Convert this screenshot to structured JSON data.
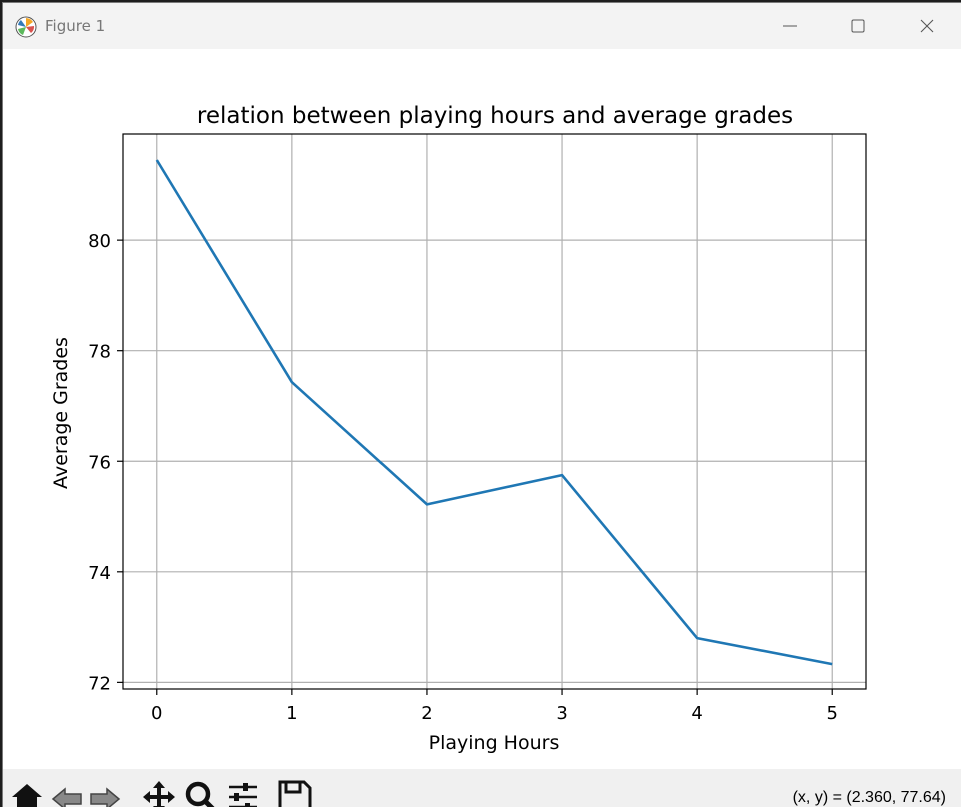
{
  "window": {
    "title": "Figure 1"
  },
  "toolbar": {
    "tools": [
      "home-icon",
      "back-icon",
      "forward-icon",
      "pan-icon",
      "zoom-icon",
      "configure-subplots-icon",
      "save-icon"
    ],
    "coords_text": "(x, y) = (2.360, 77.64)"
  },
  "chart_data": {
    "type": "line",
    "title": "relation between playing hours and average grades",
    "xlabel": "Playing Hours",
    "ylabel": "Average Grades",
    "x": [
      0,
      1,
      2,
      3,
      4,
      5
    ],
    "series": [
      {
        "values": [
          81.45,
          77.43,
          75.22,
          75.75,
          72.8,
          72.33
        ]
      }
    ],
    "xlim": [
      -0.25,
      5.25
    ],
    "ylim": [
      71.88,
      81.92
    ],
    "xticks": [
      0,
      1,
      2,
      3,
      4,
      5
    ],
    "yticks": [
      72,
      74,
      76,
      78,
      80
    ],
    "grid": true,
    "line_color": "#1f77b4"
  }
}
